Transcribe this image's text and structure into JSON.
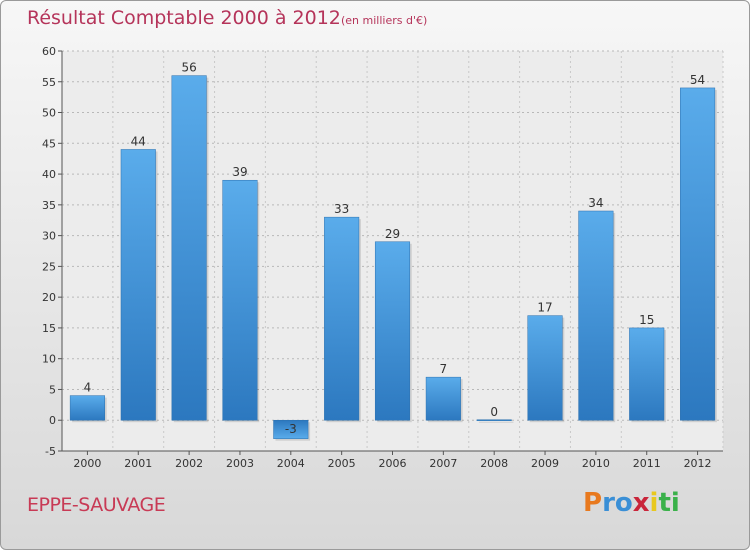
{
  "title": "Résultat Comptable 2000 à 2012",
  "subtitle": "(en milliers d'€)",
  "commune": "EPPE-SAUVAGE",
  "logo": {
    "letters": [
      "P",
      "r",
      "o",
      "x",
      "i",
      "t",
      "i"
    ],
    "colors": [
      "#e8791e",
      "#3a8fd6",
      "#3a8fd6",
      "#c9253a",
      "#e8c81e",
      "#3ab14a",
      "#3ab14a"
    ]
  },
  "chart_data": {
    "type": "bar",
    "title": "Résultat Comptable 2000 à 2012",
    "subtitle": "(en milliers d'€)",
    "xlabel": "",
    "ylabel": "",
    "categories": [
      "2000",
      "2001",
      "2002",
      "2003",
      "2004",
      "2005",
      "2006",
      "2007",
      "2008",
      "2009",
      "2010",
      "2011",
      "2012"
    ],
    "values": [
      4,
      44,
      56,
      39,
      -3,
      33,
      29,
      7,
      0,
      17,
      34,
      15,
      54
    ],
    "data_labels": [
      "4",
      "44",
      "56",
      "39",
      "-3",
      "33",
      "29",
      "7",
      "0",
      "17",
      "34",
      "15",
      "54"
    ],
    "ylim": [
      -5,
      60
    ],
    "yticks": [
      -5,
      0,
      5,
      10,
      15,
      20,
      25,
      30,
      35,
      40,
      45,
      50,
      55,
      60
    ],
    "grid": true,
    "bar_color": "#3d8fd8",
    "bar_color_light": "#5aaceb",
    "bar_color_dark": "#2c78bf"
  }
}
